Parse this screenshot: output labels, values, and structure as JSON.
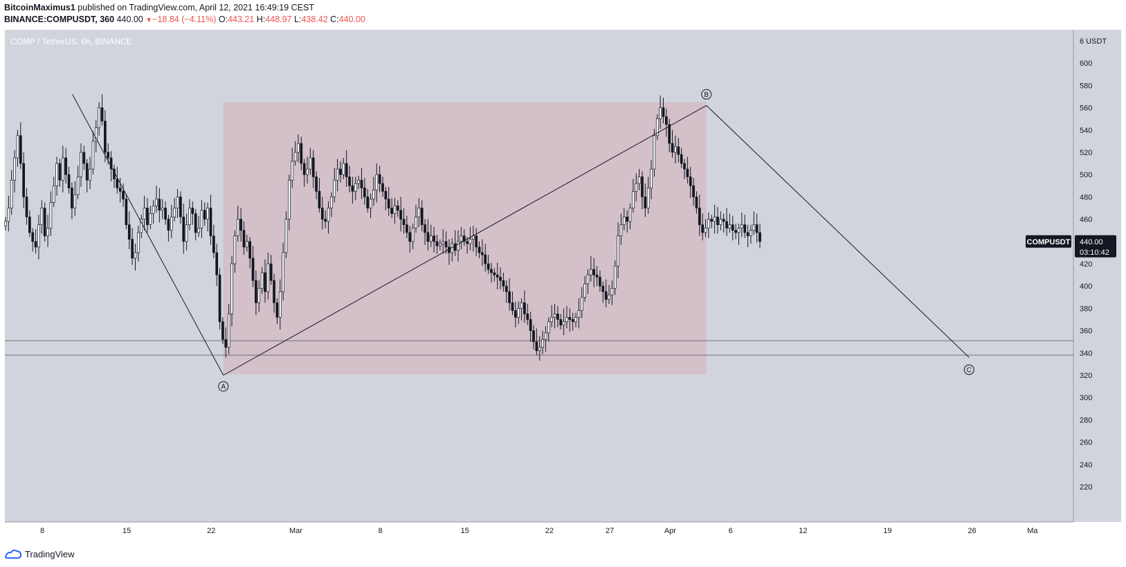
{
  "header": {
    "author": "BitcoinMaximus1",
    "published_text": "published on TradingView.com, April 12, 2021 16:49:19 CEST",
    "symbol_line": "BINANCE:COMPUSDT, 360",
    "last_price": "440.00",
    "change": "−18.84 (−4.11%)",
    "o_label": "O:",
    "o_value": "443.21",
    "h_label": "H:",
    "h_value": "448.97",
    "l_label": "L:",
    "l_value": "438.42",
    "c_label": "C:",
    "c_value": "440.00"
  },
  "chart_title": "COMP / TetherUS, 6h, BINANCE",
  "price_tag": {
    "symbol": "COMPUSDT",
    "price": "440.00",
    "countdown": "03:10:42"
  },
  "footer": {
    "brand": "TradingView"
  },
  "colors": {
    "background": "#d1d4dc",
    "box_fill": "#d4bcc5",
    "candle_up": "#ffffff",
    "candle_down": "#131722",
    "price_tag_bg": "#131722"
  },
  "chart_data": {
    "type": "candlestick",
    "title": "COMP / TetherUS, 6h, BINANCE",
    "currency": "USDT",
    "y_ticks": [
      220,
      240,
      260,
      280,
      300,
      320,
      340,
      360,
      380,
      400,
      420,
      440,
      460,
      480,
      500,
      520,
      540,
      560,
      580,
      600
    ],
    "y_top_partial_label": "6",
    "x_ticks": [
      "8",
      "15",
      "22",
      "Mar",
      "8",
      "15",
      "22",
      "27",
      "Apr",
      "6",
      "12",
      "19",
      "26",
      "Ma"
    ],
    "x_ticks_dates": [
      "2021-02-08",
      "2021-02-15",
      "2021-02-22",
      "2021-03-01",
      "2021-03-08",
      "2021-03-15",
      "2021-03-22",
      "2021-03-27",
      "2021-04-01",
      "2021-04-06",
      "2021-04-12",
      "2021-04-19",
      "2021-04-26",
      "2021-05-01"
    ],
    "price_line": 440.0,
    "horizontal_levels": [
      351,
      338
    ],
    "box": {
      "x_start": "2021-02-23",
      "x_end": "2021-04-04",
      "y_low": 321,
      "y_high": 565
    },
    "wave_lines": [
      {
        "from": {
          "x": "2021-02-10T12:00",
          "y": 572
        },
        "to": {
          "x": "2021-02-23",
          "y": 320
        }
      },
      {
        "from": {
          "x": "2021-02-23",
          "y": 320
        },
        "to": {
          "x": "2021-04-04",
          "y": 562
        }
      },
      {
        "from": {
          "x": "2021-04-04",
          "y": 562
        },
        "to": {
          "x": "2021-04-25T18:00",
          "y": 336
        }
      }
    ],
    "wave_labels": [
      {
        "text": "A",
        "x": "2021-02-23",
        "y": 310
      },
      {
        "text": "B",
        "x": "2021-04-04",
        "y": 572
      },
      {
        "text": "C",
        "x": "2021-04-25T18:00",
        "y": 325
      }
    ],
    "closes": [
      458,
      470,
      495,
      515,
      535,
      510,
      480,
      462,
      448,
      440,
      435,
      455,
      470,
      445,
      452,
      475,
      490,
      510,
      495,
      515,
      500,
      488,
      470,
      482,
      498,
      520,
      510,
      495,
      505,
      530,
      542,
      560,
      548,
      520,
      515,
      505,
      496,
      488,
      485,
      478,
      455,
      442,
      425,
      430,
      448,
      460,
      470,
      455,
      465,
      472,
      478,
      468,
      470,
      460,
      450,
      462,
      470,
      480,
      462,
      440,
      455,
      470,
      465,
      448,
      452,
      468,
      460,
      470,
      445,
      430,
      410,
      368,
      352,
      345,
      375,
      420,
      445,
      460,
      450,
      435,
      440,
      425,
      405,
      385,
      398,
      412,
      395,
      420,
      405,
      385,
      372,
      395,
      430,
      460,
      495,
      512,
      520,
      528,
      510,
      500,
      505,
      515,
      498,
      485,
      470,
      460,
      458,
      470,
      480,
      495,
      505,
      500,
      510,
      498,
      490,
      485,
      492,
      495,
      488,
      480,
      470,
      478,
      486,
      500,
      492,
      485,
      478,
      470,
      465,
      472,
      468,
      460,
      455,
      448,
      440,
      452,
      462,
      470,
      455,
      448,
      440,
      445,
      440,
      436,
      438,
      440,
      435,
      430,
      438,
      432,
      440,
      445,
      440,
      438,
      442,
      445,
      435,
      430,
      428,
      420,
      415,
      412,
      410,
      408,
      405,
      400,
      395,
      385,
      378,
      372,
      380,
      385,
      375,
      370,
      360,
      350,
      342,
      345,
      352,
      358,
      368,
      372,
      375,
      370,
      365,
      368,
      372,
      370,
      368,
      372,
      378,
      390,
      402,
      410,
      415,
      410,
      408,
      400,
      395,
      388,
      392,
      398,
      418,
      445,
      455,
      462,
      458,
      470,
      485,
      492,
      498,
      480,
      470,
      488,
      505,
      535,
      550,
      560,
      552,
      545,
      528,
      520,
      525,
      518,
      510,
      505,
      498,
      490,
      480,
      470,
      455,
      448,
      452,
      460,
      458,
      462,
      455,
      460,
      458,
      452,
      455,
      450,
      448,
      452,
      455,
      448,
      445,
      450,
      455,
      448,
      440
    ]
  }
}
